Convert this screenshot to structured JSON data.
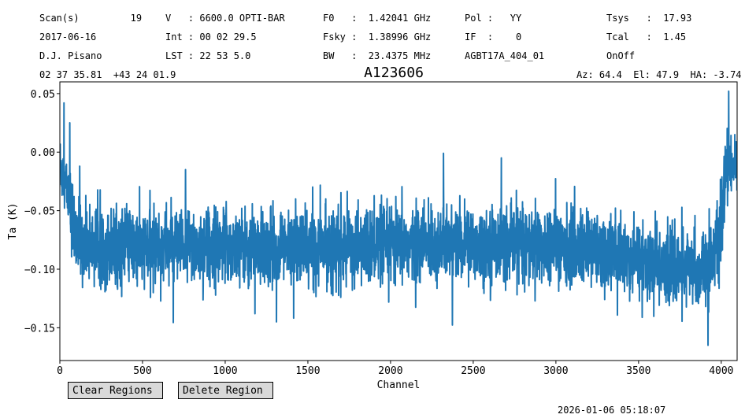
{
  "header": {
    "col1": [
      "Scan(s)         19",
      "2017-06-16",
      "D.J. Pisano",
      "02 37 35.81  +43 24 01.9"
    ],
    "col2": [
      "V   : 6600.0 OPTI-BAR",
      "Int : 00 02 29.5",
      "LST : 22 53 5.0"
    ],
    "col3": [
      "F0   :  1.42041 GHz",
      "Fsky :  1.38996 GHz",
      "BW   :  23.4375 MHz"
    ],
    "col4": [
      "Pol :   YY",
      "IF  :    0",
      "AGBT17A_404_01"
    ],
    "col5": [
      "Tsys   :  17.93",
      "Tcal   :  1.45",
      "OnOff"
    ],
    "azel": "Az: 64.4  El: 47.9  HA: -3.74"
  },
  "buttons": {
    "clear": "Clear Regions",
    "delete": "Delete Region"
  },
  "timestamp": "2026-01-06 05:18:07",
  "chart_data": {
    "type": "line",
    "title": "A123606",
    "xlabel": "Channel",
    "ylabel": "Ta (K)",
    "xlim": [
      0,
      4096
    ],
    "ylim": [
      -0.178,
      0.06
    ],
    "xticks": [
      0,
      500,
      1000,
      1500,
      2000,
      2500,
      3000,
      3500,
      4000
    ],
    "yticks": [
      0.05,
      0.0,
      -0.05,
      -0.1,
      -0.15
    ],
    "ytick_labels": [
      "0.05",
      "0.00",
      "−0.05",
      "−0.10",
      "−0.15"
    ],
    "grid": false,
    "series": [
      {
        "color": "#1f77b4",
        "n_channels": 4096,
        "baseline_x": [
          0,
          40,
          100,
          200,
          500,
          1000,
          1500,
          2000,
          2500,
          3000,
          3500,
          3700,
          3900,
          4000,
          4030,
          4095
        ],
        "baseline_y": [
          -0.01,
          -0.03,
          -0.075,
          -0.08,
          -0.082,
          -0.08,
          -0.082,
          -0.08,
          -0.078,
          -0.08,
          -0.09,
          -0.1,
          -0.1,
          -0.07,
          -0.01,
          -0.01
        ],
        "noise_sigma": 0.016,
        "spikes_x": [
          25,
          60,
          120,
          760,
          2320,
          2670,
          4045,
          3920,
          1310,
          1180
        ],
        "spikes_y": [
          0.042,
          0.025,
          -0.012,
          -0.015,
          -0.001,
          -0.005,
          0.052,
          -0.165,
          -0.145,
          -0.138
        ]
      }
    ]
  }
}
